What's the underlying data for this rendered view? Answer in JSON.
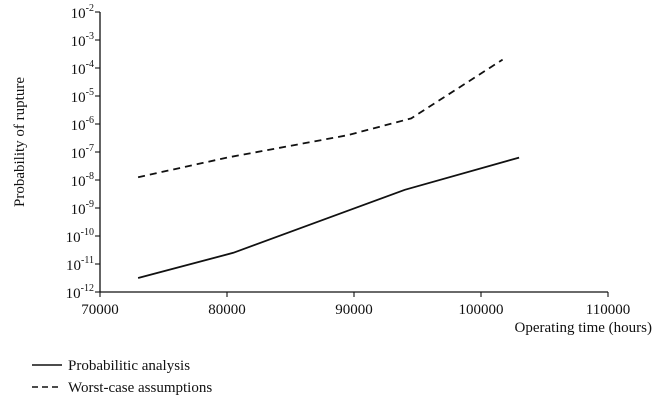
{
  "chart_data": {
    "type": "line",
    "title": "",
    "xlabel": "Operating time (hours)",
    "ylabel": "Probability of rupture",
    "xlim": [
      70000,
      110000
    ],
    "ylim_log10": [
      -12,
      -2
    ],
    "y_scale": "log",
    "grid": false,
    "legend_position": "bottom-left",
    "x_ticks": [
      {
        "value": 70000,
        "label": "70000"
      },
      {
        "value": 80000,
        "label": "80000"
      },
      {
        "value": 90000,
        "label": "90000"
      },
      {
        "value": 100000,
        "label": "100000"
      },
      {
        "value": 110000,
        "label": "110000"
      }
    ],
    "y_ticks": [
      {
        "exp": -2,
        "base": "10",
        "sup": "-2"
      },
      {
        "exp": -3,
        "base": "10",
        "sup": "-3"
      },
      {
        "exp": -4,
        "base": "10",
        "sup": "-4"
      },
      {
        "exp": -5,
        "base": "10",
        "sup": "-5"
      },
      {
        "exp": -6,
        "base": "10",
        "sup": "-6"
      },
      {
        "exp": -7,
        "base": "10",
        "sup": "-7"
      },
      {
        "exp": -8,
        "base": "10",
        "sup": "-8"
      },
      {
        "exp": -9,
        "base": "10",
        "sup": "-9"
      },
      {
        "exp": -10,
        "base": "10",
        "sup": "-10"
      },
      {
        "exp": -11,
        "base": "10",
        "sup": "-11"
      },
      {
        "exp": -12,
        "base": "10",
        "sup": "-12"
      }
    ],
    "series": [
      {
        "name": "Probabilitic analysis",
        "style": "solid",
        "points": [
          [
            73000,
            -11.5
          ],
          [
            80500,
            -10.6
          ],
          [
            89500,
            -9.1
          ],
          [
            94000,
            -8.35
          ],
          [
            103000,
            -7.2
          ]
        ]
      },
      {
        "name": "Worst-case assumptions",
        "style": "dashed",
        "points": [
          [
            73000,
            -7.9
          ],
          [
            80000,
            -7.2
          ],
          [
            89500,
            -6.4
          ],
          [
            94500,
            -5.8
          ],
          [
            101700,
            -3.7
          ]
        ]
      }
    ]
  }
}
